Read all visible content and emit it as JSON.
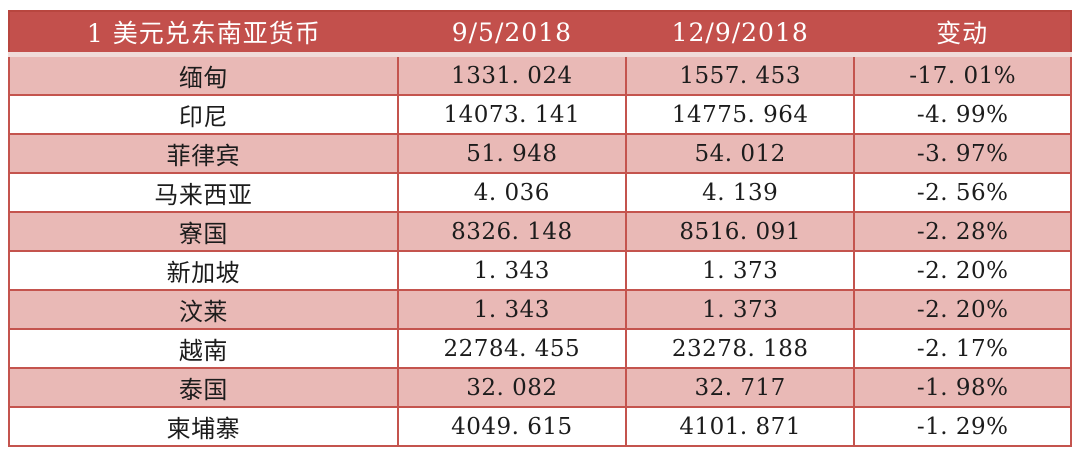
{
  "colors": {
    "header_bg": "#c3504c",
    "header_text": "#ffffff",
    "row_pink": "#e9b9b6",
    "row_white": "#ffffff",
    "border_red": "#c4544e",
    "header_divider": "#f0dbd9",
    "cell_text": "#1c1c1c"
  },
  "table": {
    "columns": [
      "1 美元兑东南亚货币",
      "9/5/2018",
      "12/9/2018",
      "变动"
    ],
    "rows": [
      {
        "cells": [
          "缅甸",
          "1331. 024",
          "1557. 453",
          "-17. 01%"
        ]
      },
      {
        "cells": [
          "印尼",
          "14073. 141",
          "14775. 964",
          "-4. 99%"
        ]
      },
      {
        "cells": [
          "菲律宾",
          "51. 948",
          "54. 012",
          "-3. 97%"
        ]
      },
      {
        "cells": [
          "马来西亚",
          "4. 036",
          "4. 139",
          "-2. 56%"
        ]
      },
      {
        "cells": [
          "寮国",
          "8326. 148",
          "8516. 091",
          "-2. 28%"
        ]
      },
      {
        "cells": [
          "新加坡",
          "1. 343",
          "1. 373",
          "-2. 20%"
        ]
      },
      {
        "cells": [
          "汶莱",
          "1. 343",
          "1. 373",
          "-2. 20%"
        ]
      },
      {
        "cells": [
          "越南",
          "22784. 455",
          "23278. 188",
          "-2. 17%"
        ]
      },
      {
        "cells": [
          "泰国",
          "32. 082",
          "32. 717",
          "-1. 98%"
        ]
      },
      {
        "cells": [
          "柬埔寨",
          "4049. 615",
          "4101. 871",
          "-1. 29%"
        ]
      }
    ]
  },
  "chart_data": {
    "type": "table",
    "title": "1 美元兑东南亚货币",
    "columns": [
      "1 美元兑东南亚货币",
      "9/5/2018",
      "12/9/2018",
      "变动"
    ],
    "rows": [
      {
        "currency": "缅甸",
        "rate_2018_09_05": 1331.024,
        "rate_2018_12_09": 1557.453,
        "change_pct": -17.01
      },
      {
        "currency": "印尼",
        "rate_2018_09_05": 14073.141,
        "rate_2018_12_09": 14775.964,
        "change_pct": -4.99
      },
      {
        "currency": "菲律宾",
        "rate_2018_09_05": 51.948,
        "rate_2018_12_09": 54.012,
        "change_pct": -3.97
      },
      {
        "currency": "马来西亚",
        "rate_2018_09_05": 4.036,
        "rate_2018_12_09": 4.139,
        "change_pct": -2.56
      },
      {
        "currency": "寮国",
        "rate_2018_09_05": 8326.148,
        "rate_2018_12_09": 8516.091,
        "change_pct": -2.28
      },
      {
        "currency": "新加坡",
        "rate_2018_09_05": 1.343,
        "rate_2018_12_09": 1.373,
        "change_pct": -2.2
      },
      {
        "currency": "汶莱",
        "rate_2018_09_05": 1.343,
        "rate_2018_12_09": 1.373,
        "change_pct": -2.2
      },
      {
        "currency": "越南",
        "rate_2018_09_05": 22784.455,
        "rate_2018_12_09": 23278.188,
        "change_pct": -2.17
      },
      {
        "currency": "泰国",
        "rate_2018_09_05": 32.082,
        "rate_2018_12_09": 32.717,
        "change_pct": -1.98
      },
      {
        "currency": "柬埔寨",
        "rate_2018_09_05": 4049.615,
        "rate_2018_12_09": 4101.871,
        "change_pct": -1.29
      }
    ]
  }
}
